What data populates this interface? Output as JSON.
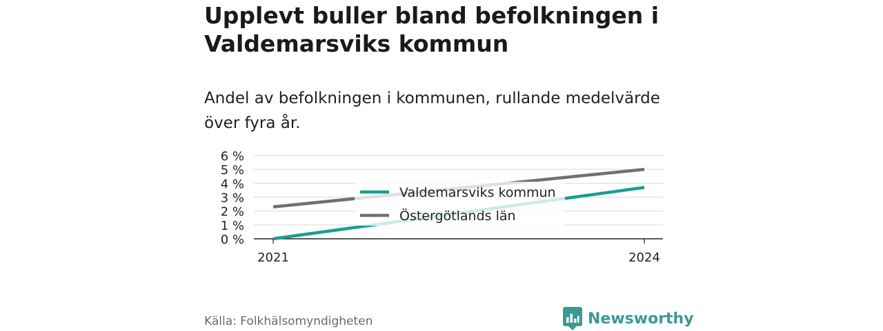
{
  "header": {
    "title": "Upplevt buller bland befolkningen i Valdemarsviks kommun",
    "subtitle": "Andel av befolkningen i kommunen, rullande medelvärde över fyra år."
  },
  "footer": {
    "source": "Källa: Folkhälsomyndigheten",
    "brand": "Newsworthy"
  },
  "colors": {
    "kommun": "#1a9e91",
    "lan": "#707070",
    "grid": "#d9d9d9",
    "axis": "#222222",
    "brand": "#3a9a93"
  },
  "chart_data": {
    "type": "line",
    "x": [
      2021,
      2024
    ],
    "x_tick_labels": [
      "2021",
      "2024"
    ],
    "series": [
      {
        "name": "Valdemarsviks kommun",
        "values": [
          0.0,
          3.7
        ],
        "color": "#1a9e91"
      },
      {
        "name": "Östergötlands län",
        "values": [
          2.3,
          5.0
        ],
        "color": "#707070"
      }
    ],
    "y_ticks": [
      0,
      1,
      2,
      3,
      4,
      5,
      6
    ],
    "y_tick_labels": [
      "0 %",
      "1 %",
      "2 %",
      "3 %",
      "4 %",
      "5 %",
      "6 %"
    ],
    "ylim": [
      0,
      6
    ],
    "xlim": [
      2021,
      2024
    ],
    "grid": true,
    "legend": "center"
  }
}
